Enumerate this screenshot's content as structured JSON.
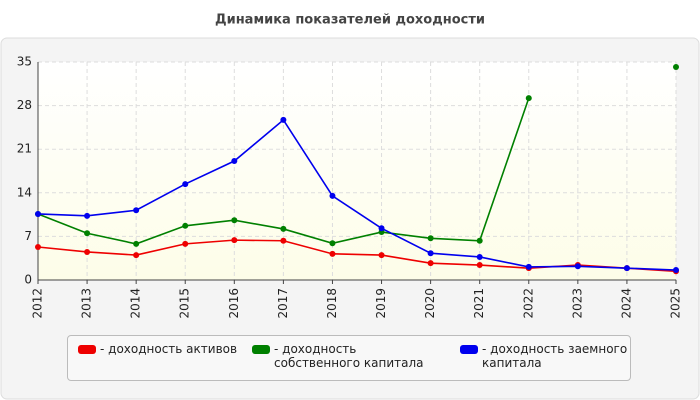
{
  "chart_data": {
    "type": "line",
    "title": "Динамика показателей доходности",
    "categories": [
      "2012",
      "2013",
      "2014",
      "2015",
      "2016",
      "2017",
      "2018",
      "2019",
      "2020",
      "2021",
      "2022",
      "2023",
      "2024",
      "2025"
    ],
    "series": [
      {
        "name": "- доходность активов",
        "color": "#ee0000",
        "values": [
          5.3,
          4.5,
          4.0,
          5.8,
          6.4,
          6.3,
          4.2,
          4.0,
          2.7,
          2.4,
          1.9,
          2.4,
          1.9,
          1.4
        ]
      },
      {
        "name": "- доходность собственного капитала",
        "color": "#008000",
        "values": [
          10.6,
          7.5,
          5.8,
          8.7,
          9.6,
          8.2,
          5.9,
          7.7,
          6.7,
          6.3,
          29.2,
          null,
          null,
          34.2
        ]
      },
      {
        "name": "- доходность заемного капитала",
        "color": "#0000ee",
        "values": [
          10.6,
          10.3,
          11.2,
          15.4,
          19.1,
          25.7,
          13.5,
          8.3,
          4.3,
          3.7,
          2.1,
          2.2,
          1.9,
          1.6
        ]
      }
    ],
    "ylim": [
      0,
      35
    ],
    "yticks": [
      0,
      7,
      14,
      21,
      28,
      35
    ],
    "grid": true,
    "legend": "bottom"
  }
}
